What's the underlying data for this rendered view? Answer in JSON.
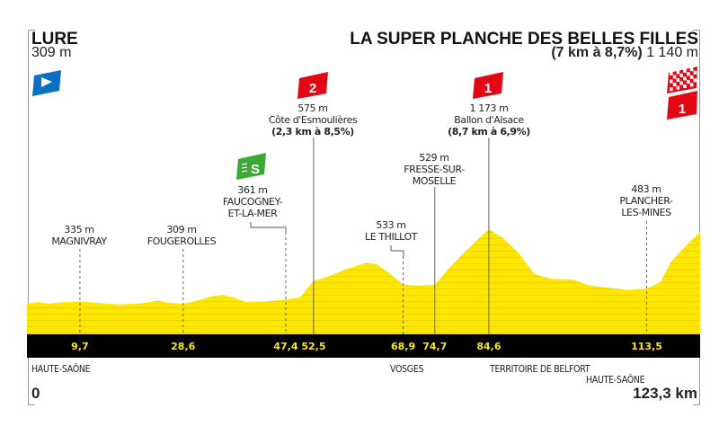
{
  "header": {
    "start_name": "LURE",
    "start_altitude": "309 m",
    "finish_name": "LA SUPER PLANCHE DES BELLES FILLES",
    "finish_climb": "(7 km à 8,7%)",
    "finish_altitude": "1 140 m"
  },
  "colors": {
    "profile": "#fbe700",
    "band": "#000000",
    "km_text": "#fbe700",
    "cat1": "#e30613",
    "cat2": "#e30613",
    "sprint": "#3aaa35",
    "start": "#0a6fc2"
  },
  "icons": {
    "start": "start-flag-icon",
    "finish": "checkered-flag-icon",
    "sprint": "sprint-icon"
  },
  "badges": {
    "cat2": "2",
    "cat1": "1",
    "finish_cat": "1",
    "sprint": "S"
  },
  "chart_data": {
    "type": "area",
    "xlabel": "",
    "ylabel": "",
    "x_start_label": "0",
    "x_end_label": "123,3 km",
    "xlim": [
      0,
      123.3
    ],
    "profile": [
      [
        0,
        309
      ],
      [
        2,
        330
      ],
      [
        4,
        310
      ],
      [
        6,
        325
      ],
      [
        9.7,
        335
      ],
      [
        13,
        320
      ],
      [
        17,
        300
      ],
      [
        21,
        315
      ],
      [
        24,
        345
      ],
      [
        26,
        320
      ],
      [
        28.6,
        309
      ],
      [
        31,
        340
      ],
      [
        34,
        400
      ],
      [
        36,
        410
      ],
      [
        38,
        380
      ],
      [
        40,
        330
      ],
      [
        44,
        335
      ],
      [
        47.4,
        361
      ],
      [
        50,
        380
      ],
      [
        52.5,
        575
      ],
      [
        55,
        620
      ],
      [
        58,
        700
      ],
      [
        62,
        780
      ],
      [
        64,
        770
      ],
      [
        66,
        680
      ],
      [
        68.9,
        533
      ],
      [
        71,
        520
      ],
      [
        74.7,
        529
      ],
      [
        77,
        700
      ],
      [
        80,
        900
      ],
      [
        84.6,
        1173
      ],
      [
        87,
        1080
      ],
      [
        90,
        900
      ],
      [
        93,
        650
      ],
      [
        96,
        600
      ],
      [
        100,
        590
      ],
      [
        103,
        520
      ],
      [
        106,
        500
      ],
      [
        110,
        470
      ],
      [
        113.5,
        483
      ],
      [
        116,
        560
      ],
      [
        118,
        800
      ],
      [
        121,
        1000
      ],
      [
        123.3,
        1140
      ]
    ],
    "km_ticks": [
      "9,7",
      "28,6",
      "47,4",
      "52,5",
      "68,9",
      "74,7",
      "84,6",
      "113,5"
    ],
    "km_tick_values": [
      9.7,
      28.6,
      47.4,
      52.5,
      68.9,
      74.7,
      84.6,
      113.5
    ],
    "waypoints": [
      {
        "km": 9.7,
        "altitude": "335 m",
        "name": "MAGNIVRAY"
      },
      {
        "km": 28.6,
        "altitude": "309 m",
        "name": "FOUGEROLLES"
      },
      {
        "km": 47.4,
        "altitude": "361 m",
        "name": "FAUCOGNEY-",
        "name2": "ET-LA-MER",
        "type": "sprint"
      },
      {
        "km": 52.5,
        "altitude": "575 m",
        "name": "Côte d'Esmoulières",
        "gradient": "(2,3 km à 8,5%)",
        "type": "cat2"
      },
      {
        "km": 68.9,
        "altitude": "533 m",
        "name": "LE THILLOT"
      },
      {
        "km": 74.7,
        "altitude": "529 m",
        "name": "FRESSE-SUR-",
        "name2": "MOSELLE"
      },
      {
        "km": 84.6,
        "altitude": "1 173 m",
        "name": "Ballon d'Alsace",
        "gradient": "(8,7 km à 6,9%)",
        "type": "cat1"
      },
      {
        "km": 113.5,
        "altitude": "483 m",
        "name": "PLANCHER-",
        "name2": "LES-MINES"
      }
    ],
    "regions": [
      "HAUTE-SAÔNE",
      "VOSGES",
      "TERRITOIRE DE BELFORT",
      "HAUTE-SAÔNE"
    ]
  }
}
